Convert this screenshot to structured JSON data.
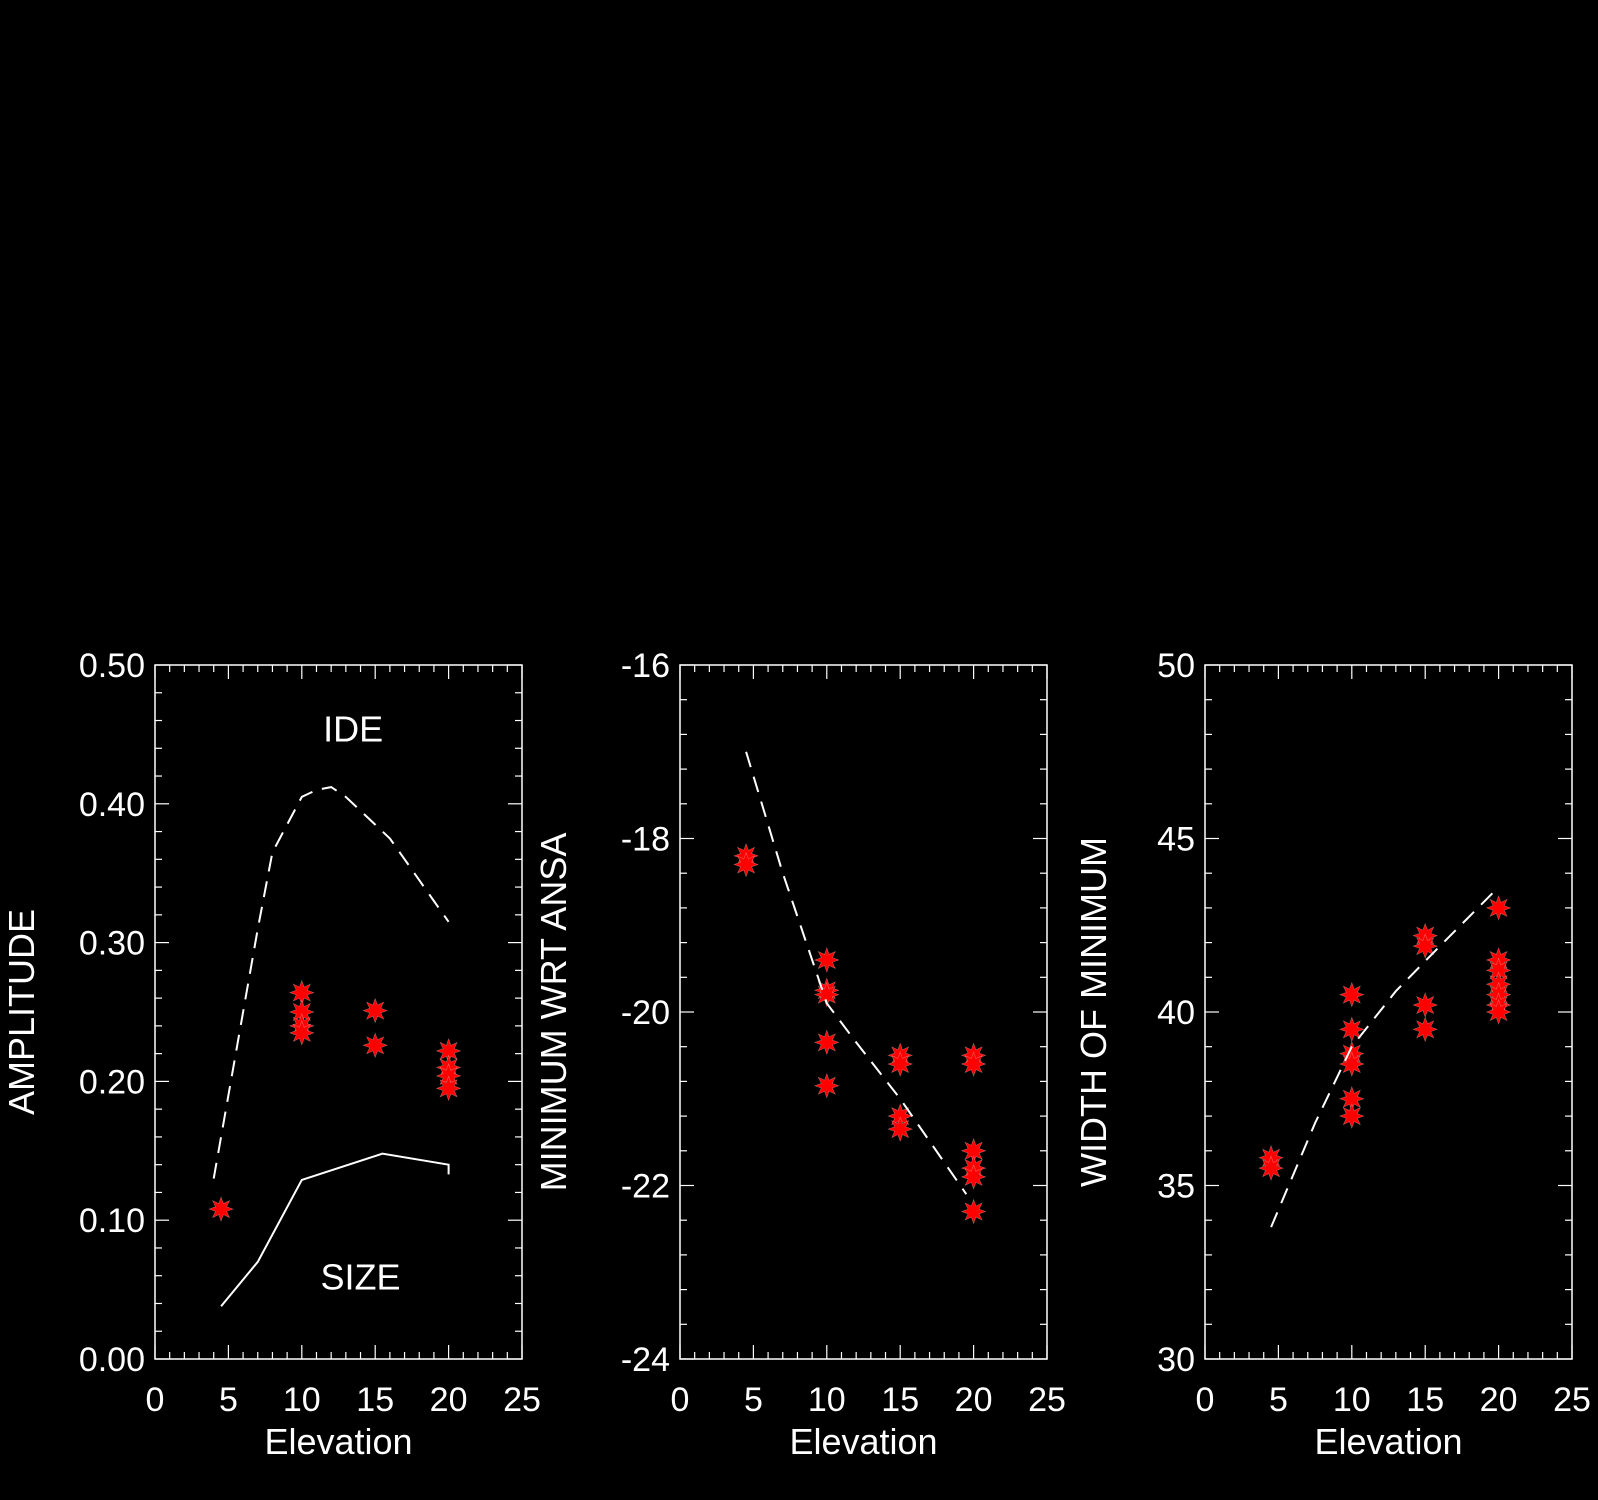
{
  "colors": {
    "background": "#000000",
    "foreground": "#ffffff",
    "marker": "#ff0000"
  },
  "chart_data": [
    {
      "type": "scatter",
      "xlabel": "Elevation",
      "ylabel": "AMPLITUDE",
      "xlim": [
        0,
        25
      ],
      "ylim": [
        0.0,
        0.5
      ],
      "xticks": [
        "0",
        "5",
        "10",
        "15",
        "20",
        "25"
      ],
      "yticks": [
        "0.00",
        "0.10",
        "0.20",
        "0.30",
        "0.40",
        "0.50"
      ],
      "annotations": [
        {
          "text": "IDE",
          "x": 13.5,
          "y": 0.445
        },
        {
          "text": "SIZE",
          "x": 14,
          "y": 0.05
        }
      ],
      "series": [
        {
          "type": "scatter",
          "marker": "star",
          "x": [
            4.5,
            10,
            10,
            10,
            10,
            15,
            15,
            20,
            20,
            20,
            20
          ],
          "y": [
            0.108,
            0.264,
            0.25,
            0.24,
            0.235,
            0.251,
            0.226,
            0.222,
            0.21,
            0.204,
            0.195
          ]
        },
        {
          "type": "line",
          "style": "dashed",
          "x": [
            4,
            5,
            6,
            7,
            8,
            9,
            10,
            11,
            12,
            13,
            14,
            15,
            16,
            17,
            18,
            19,
            20
          ],
          "y": [
            0.13,
            0.19,
            0.25,
            0.31,
            0.365,
            0.385,
            0.405,
            0.41,
            0.412,
            0.405,
            0.395,
            0.385,
            0.375,
            0.36,
            0.345,
            0.33,
            0.315
          ]
        },
        {
          "type": "line",
          "style": "solid",
          "x": [
            4.5,
            7,
            10,
            15.5,
            20,
            20
          ],
          "y": [
            0.038,
            0.07,
            0.129,
            0.148,
            0.14,
            0.133
          ]
        }
      ]
    },
    {
      "type": "scatter",
      "xlabel": "Elevation",
      "ylabel": "MINIMUM WRT ANSA",
      "xlim": [
        0,
        25
      ],
      "ylim": [
        -24,
        -16
      ],
      "xticks": [
        "0",
        "5",
        "10",
        "15",
        "20",
        "25"
      ],
      "yticks": [
        "-24",
        "-22",
        "-20",
        "-18",
        "-16"
      ],
      "series": [
        {
          "type": "scatter",
          "marker": "star",
          "x": [
            4.5,
            4.5,
            10,
            10,
            10,
            10,
            10,
            15,
            15,
            15,
            15,
            20,
            20,
            20,
            20,
            20,
            20
          ],
          "y": [
            -18.2,
            -18.3,
            -19.4,
            -19.75,
            -19.8,
            -20.35,
            -20.85,
            -20.5,
            -20.6,
            -21.2,
            -21.35,
            -20.5,
            -20.6,
            -21.6,
            -21.8,
            -21.9,
            -22.3
          ]
        },
        {
          "type": "line",
          "style": "dashed",
          "x": [
            4.5,
            7,
            10,
            12,
            15,
            19.5
          ],
          "y": [
            -17.0,
            -18.4,
            -19.9,
            -20.35,
            -21.0,
            -22.1
          ]
        }
      ]
    },
    {
      "type": "scatter",
      "xlabel": "Elevation",
      "ylabel": "WIDTH OF MINIMUM",
      "xlim": [
        0,
        25
      ],
      "ylim": [
        30,
        50
      ],
      "xticks": [
        "0",
        "5",
        "10",
        "15",
        "20",
        "25"
      ],
      "yticks": [
        "30",
        "35",
        "40",
        "45",
        "50"
      ],
      "series": [
        {
          "type": "scatter",
          "marker": "star",
          "x": [
            4.5,
            4.5,
            10,
            10,
            10,
            10,
            10,
            10,
            15,
            15,
            15,
            15,
            20,
            20,
            20,
            20,
            20,
            20,
            20
          ],
          "y": [
            35.8,
            35.5,
            40.5,
            39.5,
            38.8,
            38.5,
            37.5,
            37.0,
            42.2,
            41.9,
            40.2,
            39.5,
            43.0,
            41.5,
            41.2,
            40.8,
            40.5,
            40.2,
            40.0
          ]
        },
        {
          "type": "line",
          "style": "dashed",
          "x": [
            4.5,
            7.5,
            10,
            13,
            16,
            20
          ],
          "y": [
            33.8,
            36.8,
            39.0,
            40.6,
            41.9,
            43.6
          ]
        }
      ]
    }
  ]
}
